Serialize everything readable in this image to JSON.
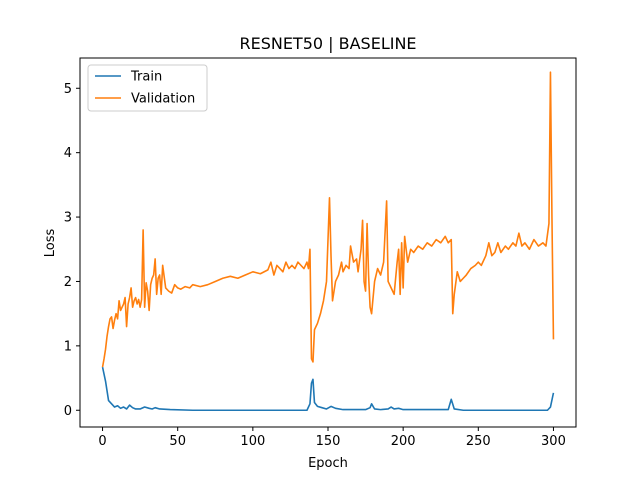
{
  "chart_data": {
    "type": "line",
    "title": "RESNET50 | BASELINE",
    "xlabel": "Epoch",
    "ylabel": "Loss",
    "xlim": [
      -15,
      315
    ],
    "ylim": [
      -0.26,
      5.47
    ],
    "xticks": [
      0,
      50,
      100,
      150,
      200,
      250,
      300
    ],
    "yticks": [
      0,
      1,
      2,
      3,
      4,
      5
    ],
    "grid": false,
    "legend_position": "top-left",
    "series": [
      {
        "name": "Train",
        "color": "#1f77b4",
        "points": [
          [
            0,
            0.67
          ],
          [
            2,
            0.45
          ],
          [
            4,
            0.15
          ],
          [
            6,
            0.1
          ],
          [
            8,
            0.05
          ],
          [
            10,
            0.07
          ],
          [
            12,
            0.03
          ],
          [
            14,
            0.05
          ],
          [
            16,
            0.02
          ],
          [
            18,
            0.08
          ],
          [
            20,
            0.04
          ],
          [
            22,
            0.02
          ],
          [
            25,
            0.02
          ],
          [
            28,
            0.05
          ],
          [
            31,
            0.03
          ],
          [
            33,
            0.02
          ],
          [
            35,
            0.04
          ],
          [
            38,
            0.02
          ],
          [
            45,
            0.01
          ],
          [
            60,
            0.0
          ],
          [
            100,
            0.0
          ],
          [
            136,
            0.0
          ],
          [
            138,
            0.1
          ],
          [
            139,
            0.42
          ],
          [
            140,
            0.48
          ],
          [
            141,
            0.12
          ],
          [
            143,
            0.06
          ],
          [
            146,
            0.04
          ],
          [
            149,
            0.02
          ],
          [
            152,
            0.06
          ],
          [
            155,
            0.03
          ],
          [
            160,
            0.01
          ],
          [
            175,
            0.01
          ],
          [
            178,
            0.04
          ],
          [
            179,
            0.1
          ],
          [
            181,
            0.02
          ],
          [
            185,
            0.01
          ],
          [
            190,
            0.02
          ],
          [
            192,
            0.05
          ],
          [
            194,
            0.02
          ],
          [
            197,
            0.03
          ],
          [
            200,
            0.01
          ],
          [
            205,
            0.01
          ],
          [
            230,
            0.01
          ],
          [
            232,
            0.17
          ],
          [
            234,
            0.02
          ],
          [
            240,
            0.0
          ],
          [
            280,
            0.0
          ],
          [
            296,
            0.0
          ],
          [
            298,
            0.05
          ],
          [
            300,
            0.27
          ]
        ]
      },
      {
        "name": "Validation",
        "color": "#ff7f0e",
        "points": [
          [
            0,
            0.67
          ],
          [
            1,
            0.8
          ],
          [
            2,
            0.95
          ],
          [
            3,
            1.15
          ],
          [
            4,
            1.3
          ],
          [
            5,
            1.42
          ],
          [
            6,
            1.45
          ],
          [
            7,
            1.27
          ],
          [
            8,
            1.4
          ],
          [
            9,
            1.5
          ],
          [
            10,
            1.42
          ],
          [
            11,
            1.7
          ],
          [
            12,
            1.55
          ],
          [
            13,
            1.6
          ],
          [
            14,
            1.65
          ],
          [
            15,
            1.75
          ],
          [
            16,
            1.3
          ],
          [
            17,
            1.65
          ],
          [
            18,
            1.75
          ],
          [
            19,
            1.9
          ],
          [
            20,
            1.6
          ],
          [
            21,
            1.7
          ],
          [
            22,
            1.75
          ],
          [
            23,
            1.65
          ],
          [
            24,
            1.72
          ],
          [
            25,
            1.6
          ],
          [
            26,
            1.72
          ],
          [
            27,
            2.8
          ],
          [
            28,
            1.6
          ],
          [
            29,
            1.98
          ],
          [
            30,
            1.85
          ],
          [
            31,
            1.55
          ],
          [
            32,
            1.95
          ],
          [
            33,
            2.05
          ],
          [
            34,
            2.1
          ],
          [
            35,
            2.35
          ],
          [
            36,
            1.8
          ],
          [
            37,
            2.05
          ],
          [
            38,
            2.1
          ],
          [
            39,
            1.8
          ],
          [
            40,
            2.25
          ],
          [
            42,
            1.9
          ],
          [
            44,
            1.85
          ],
          [
            46,
            1.82
          ],
          [
            48,
            1.95
          ],
          [
            50,
            1.9
          ],
          [
            52,
            1.88
          ],
          [
            55,
            1.92
          ],
          [
            58,
            1.9
          ],
          [
            60,
            1.95
          ],
          [
            65,
            1.92
          ],
          [
            70,
            1.95
          ],
          [
            75,
            2.0
          ],
          [
            80,
            2.05
          ],
          [
            85,
            2.08
          ],
          [
            90,
            2.05
          ],
          [
            95,
            2.1
          ],
          [
            100,
            2.15
          ],
          [
            105,
            2.12
          ],
          [
            110,
            2.18
          ],
          [
            112,
            2.3
          ],
          [
            114,
            2.1
          ],
          [
            116,
            2.25
          ],
          [
            118,
            2.2
          ],
          [
            120,
            2.15
          ],
          [
            122,
            2.3
          ],
          [
            124,
            2.2
          ],
          [
            126,
            2.25
          ],
          [
            128,
            2.2
          ],
          [
            130,
            2.3
          ],
          [
            132,
            2.25
          ],
          [
            134,
            2.2
          ],
          [
            136,
            2.3
          ],
          [
            137,
            2.2
          ],
          [
            138,
            2.5
          ],
          [
            139,
            0.8
          ],
          [
            140,
            0.75
          ],
          [
            141,
            1.25
          ],
          [
            143,
            1.35
          ],
          [
            145,
            1.5
          ],
          [
            147,
            1.7
          ],
          [
            149,
            2.0
          ],
          [
            151,
            3.3
          ],
          [
            152,
            2.4
          ],
          [
            153,
            1.7
          ],
          [
            155,
            2.0
          ],
          [
            157,
            2.1
          ],
          [
            159,
            2.3
          ],
          [
            160,
            2.15
          ],
          [
            162,
            2.25
          ],
          [
            164,
            2.2
          ],
          [
            165,
            2.55
          ],
          [
            167,
            2.3
          ],
          [
            169,
            2.35
          ],
          [
            170,
            2.15
          ],
          [
            172,
            2.5
          ],
          [
            173,
            2.95
          ],
          [
            174,
            2.0
          ],
          [
            175,
            1.85
          ],
          [
            176,
            2.9
          ],
          [
            177,
            2.1
          ],
          [
            178,
            1.6
          ],
          [
            179,
            1.5
          ],
          [
            181,
            2.0
          ],
          [
            183,
            2.2
          ],
          [
            185,
            2.1
          ],
          [
            187,
            2.3
          ],
          [
            189,
            3.25
          ],
          [
            190,
            2.0
          ],
          [
            192,
            1.9
          ],
          [
            194,
            1.8
          ],
          [
            196,
            2.3
          ],
          [
            197,
            2.5
          ],
          [
            198,
            1.8
          ],
          [
            199,
            2.6
          ],
          [
            200,
            1.9
          ],
          [
            201,
            2.7
          ],
          [
            203,
            2.3
          ],
          [
            205,
            2.5
          ],
          [
            207,
            2.45
          ],
          [
            210,
            2.55
          ],
          [
            213,
            2.5
          ],
          [
            216,
            2.6
          ],
          [
            219,
            2.55
          ],
          [
            222,
            2.65
          ],
          [
            225,
            2.6
          ],
          [
            228,
            2.7
          ],
          [
            230,
            2.6
          ],
          [
            232,
            2.65
          ],
          [
            233,
            1.5
          ],
          [
            234,
            1.8
          ],
          [
            236,
            2.15
          ],
          [
            238,
            2.0
          ],
          [
            240,
            2.05
          ],
          [
            242,
            2.1
          ],
          [
            245,
            2.2
          ],
          [
            248,
            2.25
          ],
          [
            250,
            2.3
          ],
          [
            252,
            2.25
          ],
          [
            255,
            2.4
          ],
          [
            257,
            2.6
          ],
          [
            259,
            2.4
          ],
          [
            261,
            2.45
          ],
          [
            263,
            2.6
          ],
          [
            265,
            2.45
          ],
          [
            268,
            2.55
          ],
          [
            270,
            2.5
          ],
          [
            273,
            2.6
          ],
          [
            275,
            2.55
          ],
          [
            277,
            2.75
          ],
          [
            279,
            2.55
          ],
          [
            281,
            2.6
          ],
          [
            284,
            2.5
          ],
          [
            287,
            2.65
          ],
          [
            290,
            2.55
          ],
          [
            293,
            2.6
          ],
          [
            295,
            2.55
          ],
          [
            297,
            2.9
          ],
          [
            298,
            5.25
          ],
          [
            299,
            3.0
          ],
          [
            300,
            1.1
          ]
        ]
      }
    ]
  }
}
